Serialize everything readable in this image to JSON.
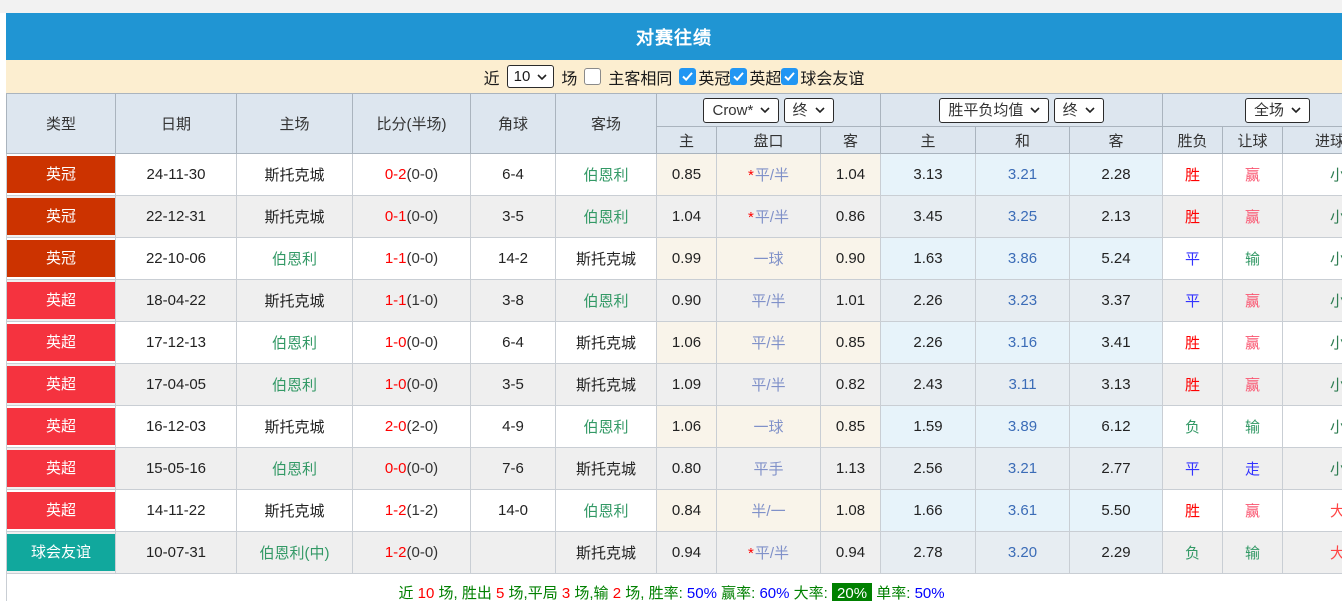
{
  "page_title": "对赛往绩",
  "filter": {
    "near_label": "近",
    "count_value": "10",
    "matches_label": "场",
    "same_venue_label": "主客相同",
    "same_venue_checked": false,
    "leagues": [
      {
        "label": "英冠",
        "checked": true
      },
      {
        "label": "英超",
        "checked": true
      },
      {
        "label": "球会友谊",
        "checked": true
      }
    ]
  },
  "table": {
    "headers_left": [
      "类型",
      "日期",
      "主场",
      "比分(半场)",
      "角球",
      "客场"
    ],
    "groups": [
      {
        "select_main": "Crow*",
        "select_time": "终",
        "cols": [
          "主",
          "盘口",
          "客"
        ]
      },
      {
        "select_main": "胜平负均值",
        "select_time": "终",
        "cols": [
          "主",
          "和",
          "客"
        ]
      },
      {
        "select_main": "全场",
        "cols": [
          "胜负",
          "让球",
          "进球数"
        ]
      }
    ],
    "rows": [
      {
        "type": "英冠",
        "date": "24-11-30",
        "home": "斯托克城",
        "home_hl": false,
        "ft": "0-2",
        "ht": "(0-0)",
        "corners": "6-4",
        "away": "伯恩利",
        "away_hl": true,
        "crow_home": "0.85",
        "handicap": "平/半",
        "handicap_star": true,
        "crow_away": "1.04",
        "wdl": [
          "3.13",
          "3.21",
          "2.28"
        ],
        "result": "胜",
        "handicap_result": "赢",
        "goals_result": "小"
      },
      {
        "type": "英冠",
        "date": "22-12-31",
        "home": "斯托克城",
        "home_hl": false,
        "ft": "0-1",
        "ht": "(0-0)",
        "corners": "3-5",
        "away": "伯恩利",
        "away_hl": true,
        "crow_home": "1.04",
        "handicap": "平/半",
        "handicap_star": true,
        "crow_away": "0.86",
        "wdl": [
          "3.45",
          "3.25",
          "2.13"
        ],
        "result": "胜",
        "handicap_result": "赢",
        "goals_result": "小"
      },
      {
        "type": "英冠",
        "date": "22-10-06",
        "home": "伯恩利",
        "home_hl": true,
        "ft": "1-1",
        "ht": "(0-0)",
        "corners": "14-2",
        "away": "斯托克城",
        "away_hl": false,
        "crow_home": "0.99",
        "handicap": "一球",
        "handicap_star": false,
        "crow_away": "0.90",
        "wdl": [
          "1.63",
          "3.86",
          "5.24"
        ],
        "result": "平",
        "handicap_result": "输",
        "goals_result": "小"
      },
      {
        "type": "英超",
        "date": "18-04-22",
        "home": "斯托克城",
        "home_hl": false,
        "ft": "1-1",
        "ht": "(1-0)",
        "corners": "3-8",
        "away": "伯恩利",
        "away_hl": true,
        "crow_home": "0.90",
        "handicap": "平/半",
        "handicap_star": false,
        "crow_away": "1.01",
        "wdl": [
          "2.26",
          "3.23",
          "3.37"
        ],
        "result": "平",
        "handicap_result": "赢",
        "goals_result": "小"
      },
      {
        "type": "英超",
        "date": "17-12-13",
        "home": "伯恩利",
        "home_hl": true,
        "ft": "1-0",
        "ht": "(0-0)",
        "corners": "6-4",
        "away": "斯托克城",
        "away_hl": false,
        "crow_home": "1.06",
        "handicap": "平/半",
        "handicap_star": false,
        "crow_away": "0.85",
        "wdl": [
          "2.26",
          "3.16",
          "3.41"
        ],
        "result": "胜",
        "handicap_result": "赢",
        "goals_result": "小"
      },
      {
        "type": "英超",
        "date": "17-04-05",
        "home": "伯恩利",
        "home_hl": true,
        "ft": "1-0",
        "ht": "(0-0)",
        "corners": "3-5",
        "away": "斯托克城",
        "away_hl": false,
        "crow_home": "1.09",
        "handicap": "平/半",
        "handicap_star": false,
        "crow_away": "0.82",
        "wdl": [
          "2.43",
          "3.11",
          "3.13"
        ],
        "result": "胜",
        "handicap_result": "赢",
        "goals_result": "小"
      },
      {
        "type": "英超",
        "date": "16-12-03",
        "home": "斯托克城",
        "home_hl": false,
        "ft": "2-0",
        "ht": "(2-0)",
        "corners": "4-9",
        "away": "伯恩利",
        "away_hl": true,
        "crow_home": "1.06",
        "handicap": "一球",
        "handicap_star": false,
        "crow_away": "0.85",
        "wdl": [
          "1.59",
          "3.89",
          "6.12"
        ],
        "result": "负",
        "handicap_result": "输",
        "goals_result": "小"
      },
      {
        "type": "英超",
        "date": "15-05-16",
        "home": "伯恩利",
        "home_hl": true,
        "ft": "0-0",
        "ht": "(0-0)",
        "corners": "7-6",
        "away": "斯托克城",
        "away_hl": false,
        "crow_home": "0.80",
        "handicap": "平手",
        "handicap_star": false,
        "crow_away": "1.13",
        "wdl": [
          "2.56",
          "3.21",
          "2.77"
        ],
        "result": "平",
        "handicap_result": "走",
        "goals_result": "小"
      },
      {
        "type": "英超",
        "date": "14-11-22",
        "home": "斯托克城",
        "home_hl": false,
        "ft": "1-2",
        "ht": "(1-2)",
        "corners": "14-0",
        "away": "伯恩利",
        "away_hl": true,
        "crow_home": "0.84",
        "handicap": "半/一",
        "handicap_star": false,
        "crow_away": "1.08",
        "wdl": [
          "1.66",
          "3.61",
          "5.50"
        ],
        "result": "胜",
        "handicap_result": "赢",
        "goals_result": "大"
      },
      {
        "type": "球会友谊",
        "date": "10-07-31",
        "home": "伯恩利(中)",
        "home_hl": true,
        "ft": "1-2",
        "ht": "(0-0)",
        "corners": "",
        "away": "斯托克城",
        "away_hl": false,
        "crow_home": "0.94",
        "handicap": "平/半",
        "handicap_star": true,
        "crow_away": "0.94",
        "wdl": [
          "2.78",
          "3.20",
          "2.29"
        ],
        "result": "负",
        "handicap_result": "输",
        "goals_result": "大"
      }
    ]
  },
  "summary": {
    "segments": [
      {
        "text": "近 ",
        "style": "label"
      },
      {
        "text": "10",
        "style": "num"
      },
      {
        "text": " 场, ",
        "style": "label"
      },
      {
        "text": "胜出 ",
        "style": "label"
      },
      {
        "text": "5",
        "style": "num"
      },
      {
        "text": " 场,",
        "style": "label"
      },
      {
        "text": "平局 ",
        "style": "label"
      },
      {
        "text": "3",
        "style": "num"
      },
      {
        "text": " 场,",
        "style": "label"
      },
      {
        "text": "输 ",
        "style": "label"
      },
      {
        "text": "2",
        "style": "num"
      },
      {
        "text": " 场, ",
        "style": "label"
      },
      {
        "text": "胜率: ",
        "style": "label"
      },
      {
        "text": "50%",
        "style": "pct"
      },
      {
        "text": " 赢率: ",
        "style": "label"
      },
      {
        "text": "60%",
        "style": "pct"
      },
      {
        "text": " 大率: ",
        "style": "label"
      },
      {
        "text": "20%",
        "style": "highlight"
      },
      {
        "text": " 单率: ",
        "style": "label"
      },
      {
        "text": "50%",
        "style": "pct"
      }
    ]
  },
  "colors": {
    "title_bar": "#2095d3",
    "filter_bar": "#fceed0",
    "header_bg": "#dde6ef",
    "checkbox_checked": "#2196f3",
    "type_bg": {
      "英冠": "#cc3300",
      "英超": "#f5333f",
      "球会友谊": "#11a89d"
    },
    "value_class": {
      "胜": "red",
      "平": "blue",
      "负": "green",
      "赢": "pink",
      "输": "green",
      "走": "blue",
      "小": "dgreen",
      "大": "lred"
    },
    "class_hex": {
      "red": "#ff0000",
      "blue": "#3333ff",
      "green": "#339966",
      "pink": "#fa5570",
      "dgreen": "#2e7d52",
      "lred": "#ff4444"
    }
  }
}
